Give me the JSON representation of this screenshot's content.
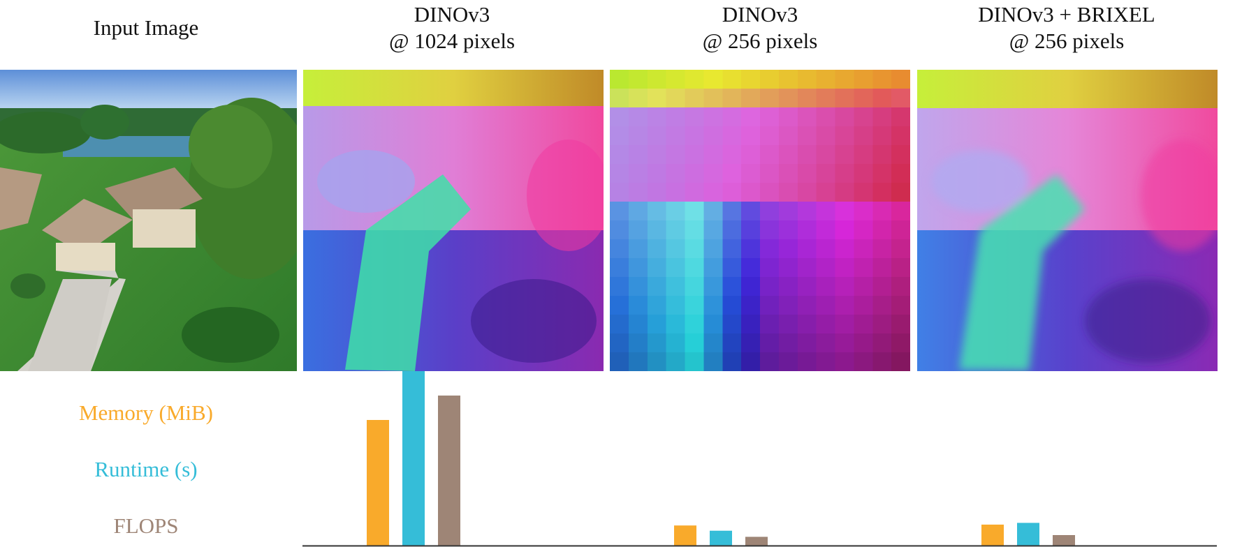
{
  "column_titles": [
    {
      "line1": "Input Image",
      "line2": ""
    },
    {
      "line1": "DINOv3",
      "line2": "@ 1024 pixels"
    },
    {
      "line1": "DINOv3",
      "line2": "@ 256 pixels"
    },
    {
      "line1": "DINOv3 + BRIXEL",
      "line2": "@ 256 pixels"
    }
  ],
  "colors": {
    "memory": "#F9AA2B",
    "runtime": "#35BDD8",
    "flops": "#9E8576",
    "axis": "#333333"
  },
  "chart_data": {
    "type": "bar",
    "categories": [
      "DINOv3 @ 1024 pixels",
      "DINOv3 @ 256 pixels",
      "DINOv3 + BRIXEL @ 256 pixels"
    ],
    "series": [
      {
        "name": "Memory (MiB)",
        "color": "#F9AA2B",
        "values": [
          0.72,
          0.115,
          0.12
        ]
      },
      {
        "name": "Runtime (s)",
        "color": "#35BDD8",
        "values": [
          1.0,
          0.085,
          0.13
        ]
      },
      {
        "name": "FLOPS",
        "color": "#9E8576",
        "values": [
          0.86,
          0.05,
          0.06
        ]
      }
    ],
    "ylim": [
      0,
      1.0
    ],
    "ylabel": "",
    "xlabel": "",
    "axis_ticks": false,
    "grid": false,
    "legend": "left"
  }
}
